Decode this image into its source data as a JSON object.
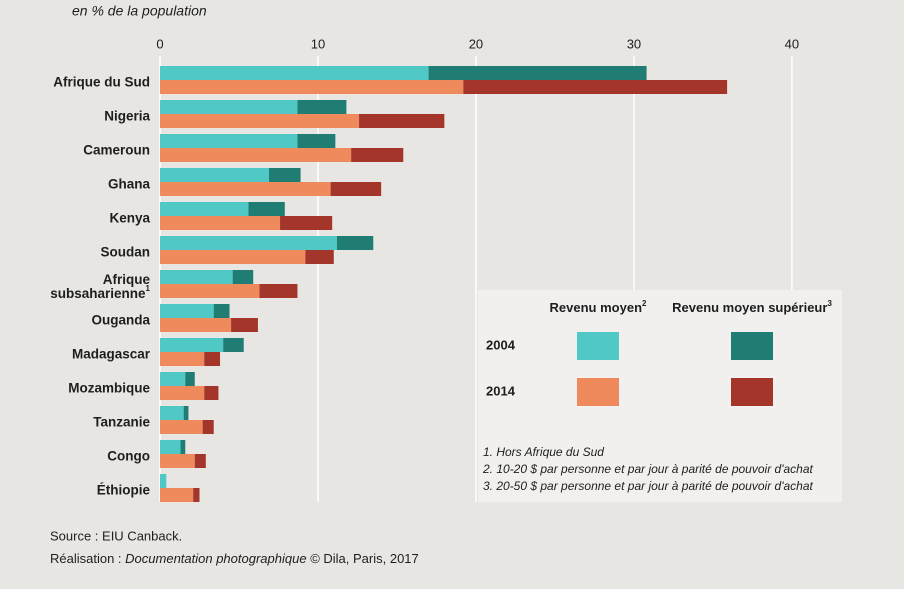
{
  "chart_data": {
    "type": "paired-stacked-barh",
    "axis_label": "en % de la population",
    "categories": [
      "Afrique du Sud",
      "Nigeria",
      "Cameroun",
      "Ghana",
      "Kenya",
      "Soudan",
      [
        "Afrique",
        "subsaharienne"
      ],
      "Ouganda",
      "Madagascar",
      "Mozambique",
      "Tanzanie",
      "Congo",
      "Éthiopie"
    ],
    "category_notes": {
      "6": "1"
    },
    "xlim": [
      0,
      46.4
    ],
    "xticks": [
      0,
      10,
      20,
      30,
      40
    ],
    "grid": true,
    "levels": [
      "Revenu moyen",
      "Revenu moyen supérieur"
    ],
    "level_notes": [
      "2",
      "3"
    ],
    "years": [
      {
        "label": "2004",
        "colors": [
          "#4fc8c6",
          "#1f7d74"
        ],
        "series": [
          [
            17.0,
            8.7,
            8.7,
            6.9,
            5.6,
            11.2,
            4.6,
            3.4,
            4.0,
            1.6,
            1.5,
            1.3,
            0.4
          ],
          [
            13.8,
            3.1,
            2.4,
            2.0,
            2.3,
            2.3,
            1.3,
            1.0,
            1.3,
            0.6,
            0.3,
            0.3,
            0
          ]
        ]
      },
      {
        "label": "2014",
        "colors": [
          "#ef8a5d",
          "#a3352b"
        ],
        "series": [
          [
            19.2,
            12.6,
            12.1,
            10.8,
            7.6,
            9.2,
            6.3,
            4.5,
            2.8,
            2.8,
            2.7,
            2.2,
            2.1
          ],
          [
            16.7,
            5.4,
            3.3,
            3.2,
            3.3,
            1.8,
            2.4,
            1.7,
            1.0,
            0.9,
            0.7,
            0.7,
            0.4
          ]
        ]
      }
    ],
    "footnotes": [
      "1. Hors Afrique du Sud",
      "2. 10-20 $ par personne et par jour à parité de pouvoir d'achat",
      "3. 20-50 $ par personne et par jour à parité de pouvoir d'achat"
    ],
    "source": "Source : EIU Canback.",
    "credit": [
      "Réalisation : ",
      "Documentation photographique",
      " © Dila, Paris, 2017"
    ]
  }
}
